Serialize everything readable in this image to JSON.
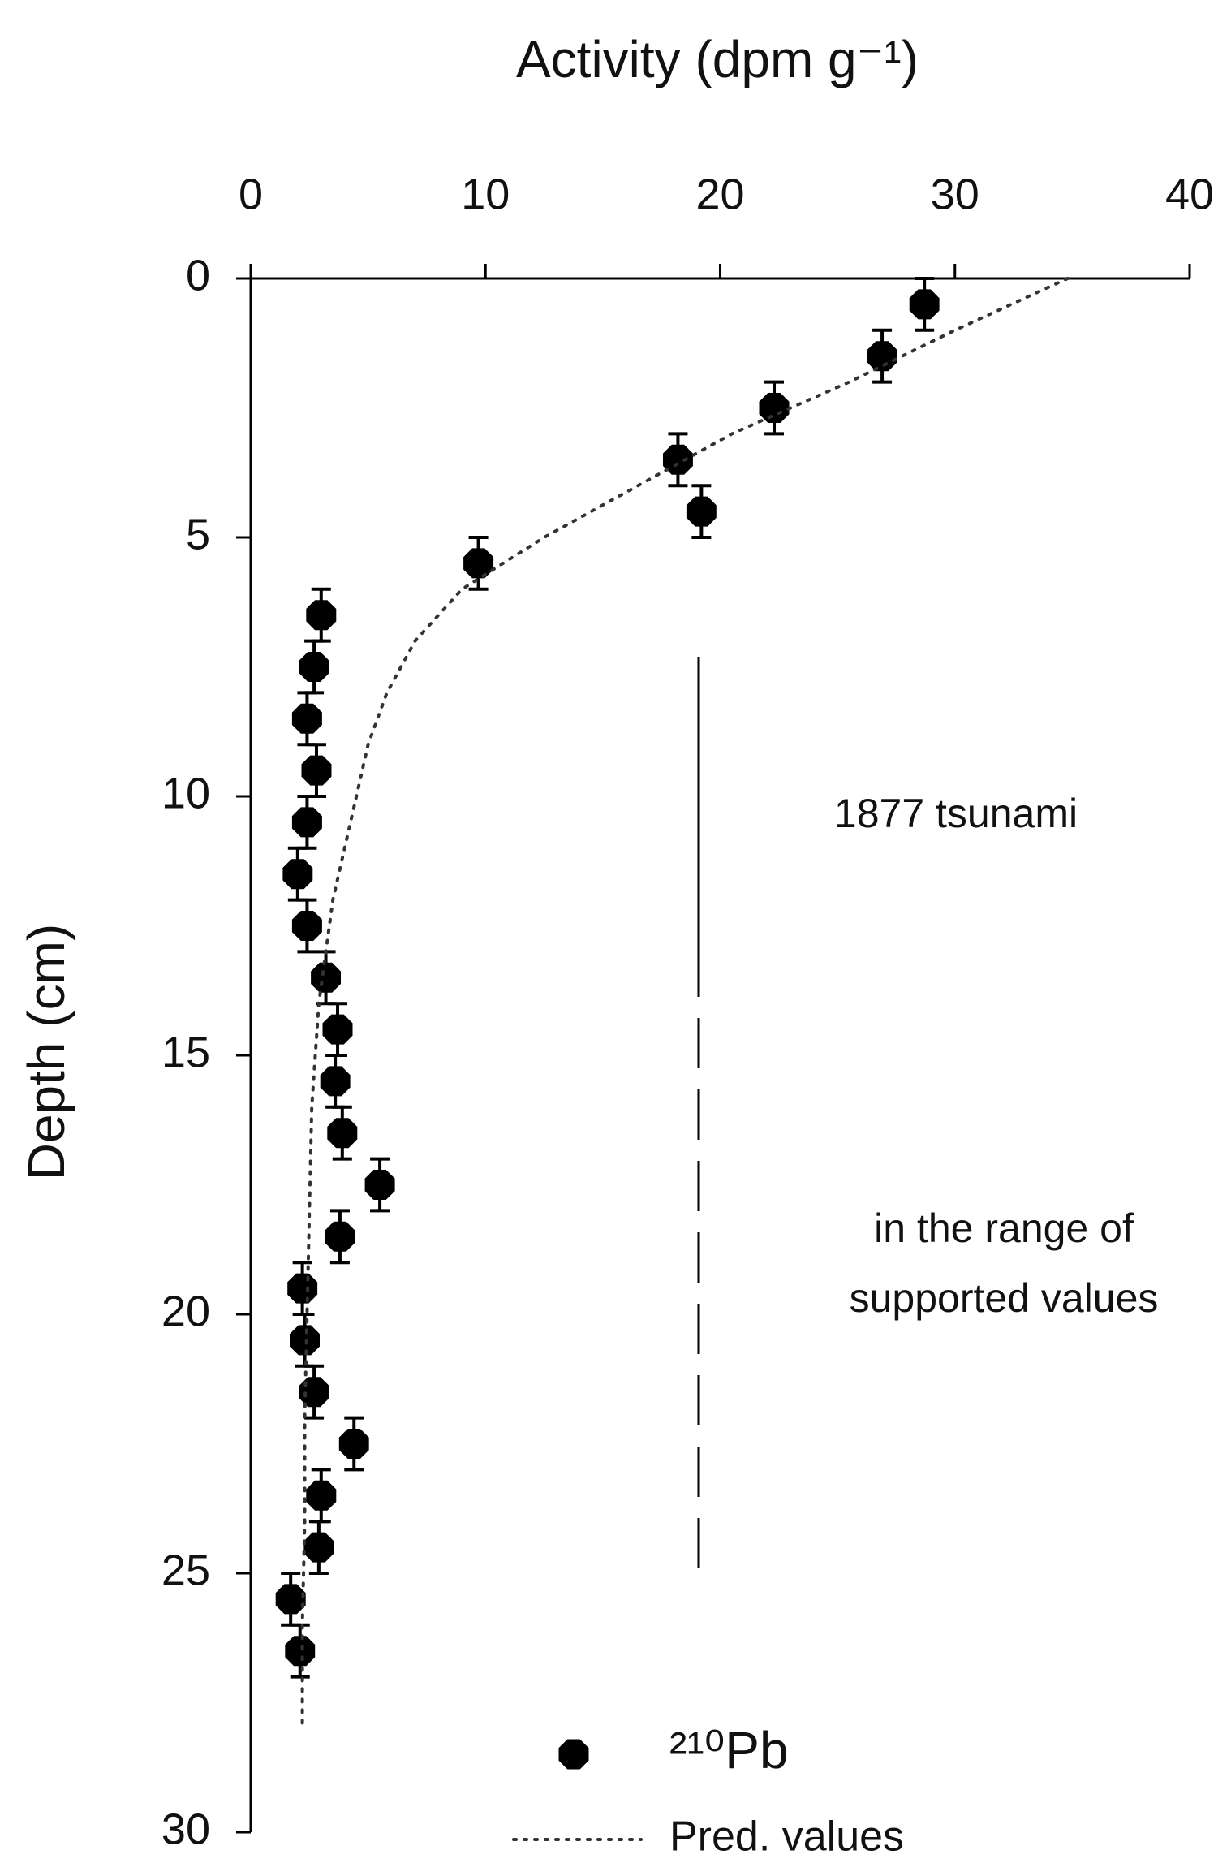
{
  "chart_data": {
    "type": "scatter",
    "x_label": "Activity (dpm g⁻¹)",
    "y_label": "Depth (cm)",
    "xlim": [
      0,
      40
    ],
    "xticks": [
      0,
      10,
      20,
      30,
      40
    ],
    "ylim": [
      0,
      30
    ],
    "yticks": [
      0,
      5,
      10,
      15,
      20,
      25,
      30
    ],
    "y_reversed": true,
    "x_axis_position": "top",
    "depth_error": 0.5,
    "series": [
      {
        "name": "²¹⁰Pb",
        "kind": "scatter",
        "color": "#000000",
        "x": [
          28.7,
          26.9,
          22.3,
          18.2,
          19.2,
          9.7,
          3.0,
          2.7,
          2.4,
          2.8,
          2.4,
          2.0,
          2.4,
          3.2,
          3.7,
          3.6,
          3.9,
          5.5,
          3.8,
          2.2,
          2.3,
          2.7,
          4.4,
          3.0,
          2.9,
          1.7,
          2.1
        ],
        "values": [
          0.5,
          1.5,
          2.5,
          3.5,
          4.5,
          5.5,
          6.5,
          7.5,
          8.5,
          9.5,
          10.5,
          11.5,
          12.5,
          13.5,
          14.5,
          15.5,
          16.5,
          17.5,
          18.5,
          19.5,
          20.5,
          21.5,
          22.5,
          23.5,
          24.5,
          25.5,
          26.5
        ]
      },
      {
        "name": "Pred. values",
        "kind": "line",
        "color": "#333333",
        "x": [
          34.8,
          30,
          25.5,
          20.5,
          16.5,
          12.5,
          9.0,
          7.0,
          5.8,
          5.0,
          4.5,
          4.0,
          3.5,
          2.9,
          2.6,
          2.5,
          2.4,
          2.3,
          2.3,
          2.2,
          2.2
        ],
        "values": [
          0,
          1,
          2,
          3,
          4,
          5,
          6,
          7,
          8,
          9,
          10,
          11,
          12,
          14,
          16,
          18,
          20,
          22,
          24,
          26,
          28
        ]
      }
    ],
    "annotations": [
      "1877 tsunami",
      "in the range of",
      "supported values"
    ]
  }
}
